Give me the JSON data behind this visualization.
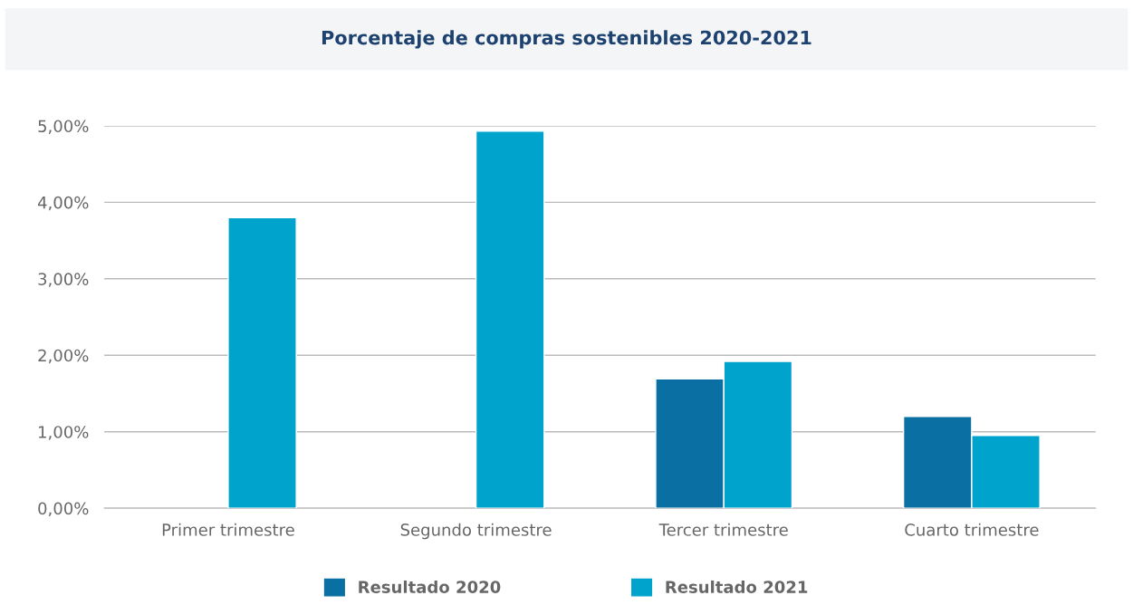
{
  "chart_data": {
    "type": "bar",
    "title": "Porcentaje de compras sostenibles 2020-2021",
    "categories": [
      "Primer trimestre",
      "Segundo trimestre",
      "Tercer trimestre",
      "Cuarto trimestre"
    ],
    "series": [
      {
        "name": "Resultado 2020",
        "color": "#0a6fa3",
        "values": [
          null,
          null,
          1.69,
          1.2
        ]
      },
      {
        "name": "Resultado 2021",
        "color": "#00a3cc",
        "values": [
          3.8,
          4.93,
          1.92,
          0.95
        ]
      }
    ],
    "ylim": [
      0,
      5
    ],
    "yticks": [
      {
        "value": 0,
        "label": "0,00%"
      },
      {
        "value": 1,
        "label": "1,00%"
      },
      {
        "value": 2,
        "label": "2,00%"
      },
      {
        "value": 3,
        "label": "3,00%"
      },
      {
        "value": 4,
        "label": "4,00%"
      },
      {
        "value": 5,
        "label": "5,00%"
      }
    ],
    "grid": "y",
    "legend": "bottom"
  }
}
